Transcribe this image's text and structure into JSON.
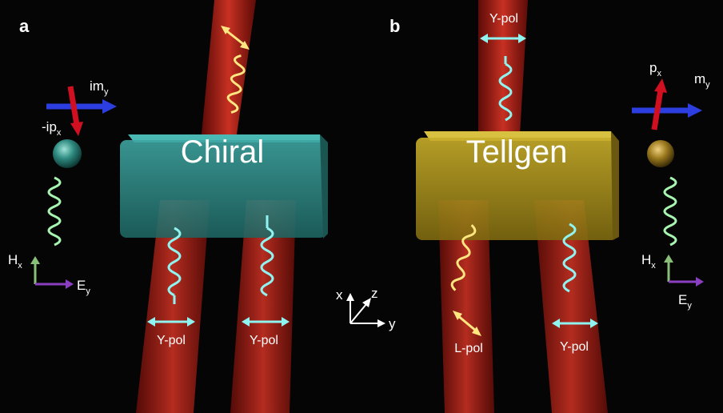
{
  "panels": {
    "a": "a",
    "b": "b"
  },
  "blocks": {
    "left": "Chiral",
    "right": "Tellgen"
  },
  "left_particle": {
    "moment_m": "im",
    "moment_m_sub": "y",
    "moment_p": "-ip",
    "moment_p_sub": "x",
    "field_h": "H",
    "field_h_sub": "x",
    "field_e": "E",
    "field_e_sub": "y"
  },
  "right_particle": {
    "moment_p": "p",
    "moment_p_sub": "x",
    "moment_m": "m",
    "moment_m_sub": "y",
    "field_h": "H",
    "field_h_sub": "x",
    "field_e": "E",
    "field_e_sub": "y"
  },
  "beam_labels": {
    "chiral_left": "Y-pol",
    "chiral_right": "Y-pol",
    "tellgen_top": "Y-pol",
    "tellgen_left": "L-pol",
    "tellgen_right": "Y-pol"
  },
  "axes": {
    "x": "x",
    "y": "y",
    "z": "z"
  },
  "colors": {
    "background": "#050505",
    "beam": "#c8261c",
    "chiral_block": "#2f8f8c",
    "tellgen_block": "#b39a20",
    "wave_cyan": "#8ff3f0",
    "wave_yellow": "#ffe680",
    "wave_green": "#a6f5b0",
    "arrow_blue": "#2c3ee0",
    "arrow_red": "#d01020"
  }
}
